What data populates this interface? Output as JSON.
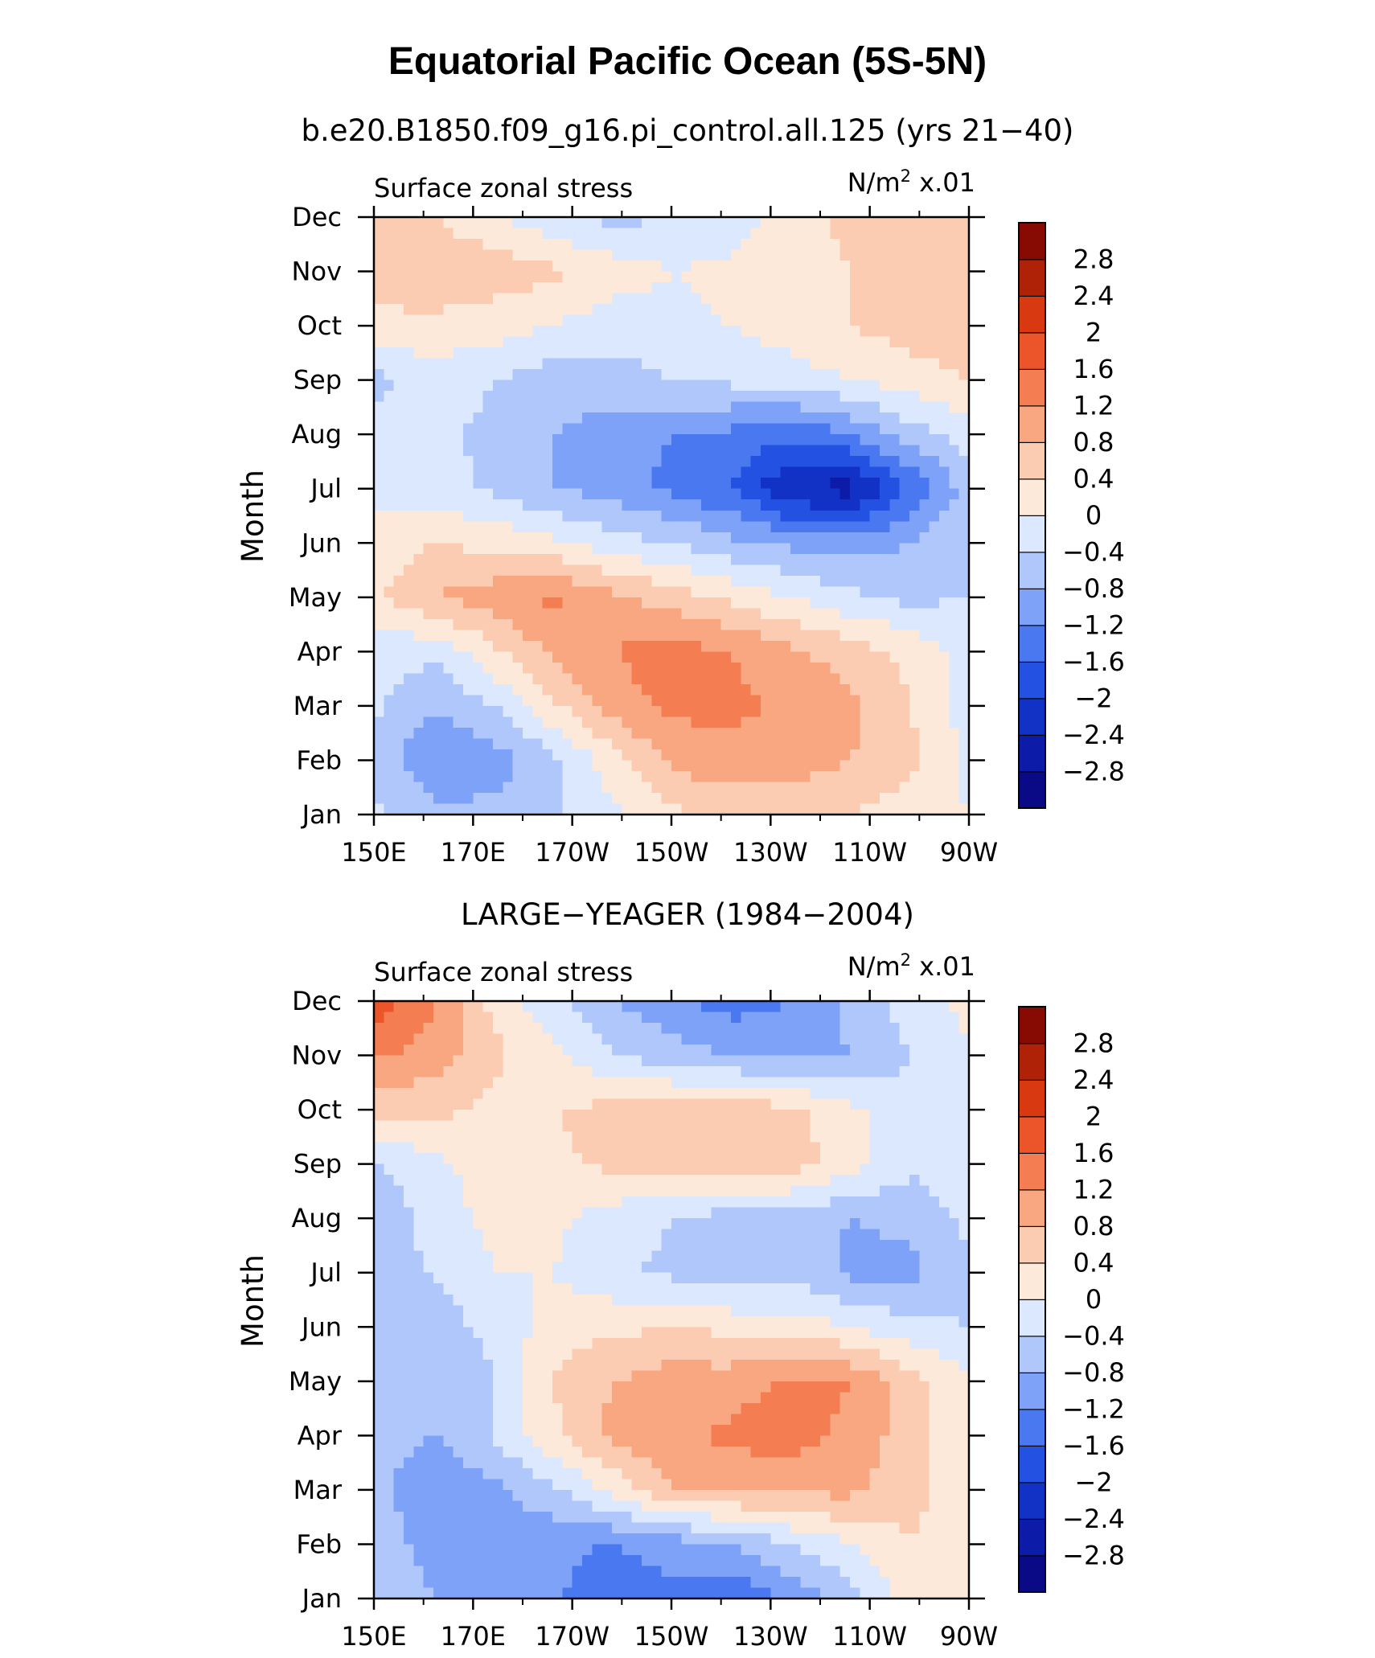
{
  "figure": {
    "title": "Equatorial Pacific Ocean (5S-5N)"
  },
  "colors": {
    "levels": [
      "#0a0a86",
      "#0c1ca8",
      "#1232c6",
      "#2351e2",
      "#4a78f0",
      "#7ea2f8",
      "#afc7fb",
      "#dbe8fd",
      "#fde9da",
      "#fcccb2",
      "#f8a780",
      "#f47d52",
      "#ec5529",
      "#d93910",
      "#b02208",
      "#870b03"
    ],
    "background": "#ffffff",
    "line": "#000000"
  },
  "chart_data": [
    {
      "type": "heatmap",
      "subtitle": "b.e20.B1850.f09_g16.pi_control.all.125 (yrs 21−40)",
      "left_label": "Surface zonal stress",
      "units_prefix": "N/m",
      "units_exp": "2",
      "units_suffix": " x.01",
      "ylabel": "Month",
      "xlabel": "",
      "x_ticks": [
        "150E",
        "170E",
        "170W",
        "150W",
        "130W",
        "110W",
        "90W"
      ],
      "y_ticks": [
        "Jan",
        "Feb",
        "Mar",
        "Apr",
        "May",
        "Jun",
        "Jul",
        "Aug",
        "Sep",
        "Oct",
        "Nov",
        "Dec"
      ],
      "colorbar_labels": [
        "2.8",
        "2.4",
        "2",
        "1.6",
        "1.2",
        "0.8",
        "0.4",
        "0",
        "−0.4",
        "−0.8",
        "−1.2",
        "−1.6",
        "−2",
        "−2.4",
        "−2.8"
      ],
      "z_range": [
        -3.2,
        3.2
      ],
      "nodes": {
        "lon_deg_east": [
          150,
          162,
          174,
          186,
          198,
          210,
          222,
          234,
          246,
          258,
          270
        ],
        "month_index": [
          1,
          2,
          3,
          4,
          5,
          6,
          7,
          8,
          9,
          10,
          11,
          12
        ],
        "values": [
          [
            -0.3,
            -0.7,
            -0.7,
            -0.5,
            -0.1,
            0.3,
            0.5,
            0.5,
            0.4,
            0.2,
            0.0
          ],
          [
            -0.6,
            -1.1,
            -1.0,
            -0.5,
            0.2,
            0.9,
            1.1,
            1.0,
            0.8,
            0.5,
            -0.1
          ],
          [
            -0.3,
            -0.8,
            -0.4,
            0.3,
            1.0,
            1.3,
            1.3,
            1.1,
            0.9,
            0.4,
            -0.2
          ],
          [
            -0.2,
            -0.3,
            0.3,
            0.9,
            1.2,
            1.4,
            1.2,
            0.9,
            0.6,
            0.3,
            -0.2
          ],
          [
            0.3,
            0.8,
            1.0,
            1.3,
            0.9,
            0.6,
            0.3,
            0.0,
            -0.3,
            -0.5,
            -0.4
          ],
          [
            0.2,
            0.4,
            0.3,
            0.1,
            -0.2,
            -0.4,
            -0.7,
            -0.9,
            -1.0,
            -0.8,
            -0.4
          ],
          [
            -0.1,
            -0.2,
            -0.5,
            -0.8,
            -1.0,
            -1.3,
            -1.6,
            -2.4,
            -2.6,
            -1.6,
            -0.6
          ],
          [
            -0.3,
            -0.3,
            -0.5,
            -0.8,
            -1.0,
            -1.2,
            -1.3,
            -1.5,
            -1.2,
            -0.6,
            -0.2
          ],
          [
            -0.5,
            -0.2,
            -0.4,
            -0.6,
            -0.6,
            -0.4,
            -0.3,
            -0.2,
            0.0,
            0.2,
            0.4
          ],
          [
            0.2,
            0.3,
            0.2,
            0.0,
            -0.2,
            -0.1,
            0.0,
            0.2,
            0.4,
            0.6,
            0.7
          ],
          [
            0.8,
            0.7,
            0.6,
            0.5,
            0.2,
            0.0,
            0.1,
            0.2,
            0.4,
            0.7,
            0.8
          ],
          [
            0.5,
            0.4,
            0.1,
            -0.3,
            -0.5,
            -0.4,
            -0.2,
            0.2,
            0.5,
            0.7,
            0.6
          ]
        ]
      }
    },
    {
      "type": "heatmap",
      "subtitle": "LARGE−YEAGER (1984−2004)",
      "left_label": "Surface zonal stress",
      "units_prefix": "N/m",
      "units_exp": "2",
      "units_suffix": " x.01",
      "ylabel": "Month",
      "xlabel": "",
      "x_ticks": [
        "150E",
        "170E",
        "170W",
        "150W",
        "130W",
        "110W",
        "90W"
      ],
      "y_ticks": [
        "Jan",
        "Feb",
        "Mar",
        "Apr",
        "May",
        "Jun",
        "Jul",
        "Aug",
        "Sep",
        "Oct",
        "Nov",
        "Dec"
      ],
      "colorbar_labels": [
        "2.8",
        "2.4",
        "2",
        "1.6",
        "1.2",
        "0.8",
        "0.4",
        "0",
        "−0.4",
        "−0.8",
        "−1.2",
        "−1.6",
        "−2",
        "−2.4",
        "−2.8"
      ],
      "z_range": [
        -3.2,
        3.2
      ],
      "nodes": {
        "lon_deg_east": [
          150,
          162,
          174,
          186,
          198,
          210,
          222,
          234,
          246,
          258,
          270
        ],
        "month_index": [
          1,
          2,
          3,
          4,
          5,
          6,
          7,
          8,
          9,
          10,
          11,
          12
        ],
        "values": [
          [
            -0.4,
            -0.8,
            -1.0,
            -1.1,
            -1.6,
            -1.3,
            -1.6,
            -1.1,
            -0.6,
            0.2,
            0.3
          ],
          [
            -0.5,
            -1.0,
            -1.0,
            -1.1,
            -1.2,
            -1.0,
            -0.8,
            -0.4,
            0.0,
            0.4,
            0.2
          ],
          [
            -0.6,
            -1.2,
            -0.9,
            -0.5,
            0.1,
            0.8,
            0.9,
            0.9,
            0.9,
            0.5,
            0.2
          ],
          [
            -0.6,
            -0.8,
            -0.4,
            0.3,
            0.9,
            1.1,
            1.3,
            1.4,
            1.1,
            0.6,
            0.1
          ],
          [
            -0.5,
            -0.8,
            -0.4,
            0.4,
            0.8,
            1.0,
            1.0,
            1.3,
            1.2,
            0.6,
            0.1
          ],
          [
            -0.5,
            -0.6,
            -0.3,
            0.2,
            0.3,
            0.4,
            0.3,
            0.2,
            0.0,
            -0.3,
            -0.4
          ],
          [
            -0.5,
            -0.4,
            0.0,
            0.0,
            -0.3,
            -0.5,
            -0.7,
            -0.5,
            -0.9,
            -0.9,
            -0.5
          ],
          [
            -0.8,
            -0.2,
            0.1,
            0.1,
            -0.2,
            -0.4,
            -0.6,
            -0.6,
            -0.8,
            -0.7,
            -0.3
          ],
          [
            -0.4,
            -0.1,
            0.2,
            0.3,
            0.5,
            0.6,
            0.7,
            0.6,
            0.2,
            -0.3,
            -0.2
          ],
          [
            0.5,
            0.5,
            0.3,
            0.4,
            0.5,
            0.6,
            0.6,
            0.5,
            0.1,
            -0.3,
            0.0
          ],
          [
            1.3,
            1.0,
            0.5,
            0.1,
            -0.4,
            -0.6,
            -0.8,
            -0.9,
            -0.8,
            -0.4,
            0.0
          ],
          [
            1.8,
            1.3,
            0.3,
            -0.3,
            -0.8,
            -1.1,
            -1.4,
            -1.2,
            -0.7,
            -0.2,
            0.1
          ]
        ]
      }
    }
  ]
}
